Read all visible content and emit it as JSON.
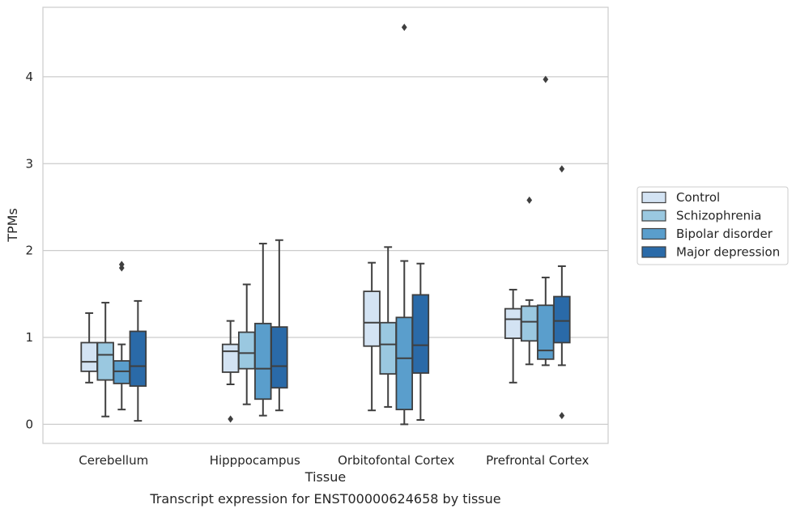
{
  "chart_data": {
    "type": "boxplot",
    "caption": "Transcript expression for ENST00000624658 by tissue",
    "xlabel": "Tissue",
    "ylabel": "TPMs",
    "ylim": [
      -0.22,
      4.8
    ],
    "yticks": [
      0,
      1,
      2,
      3,
      4
    ],
    "grid": "horizontal",
    "legend_position": "right",
    "categories": [
      "Cerebellum",
      "Hipppocampus",
      "Orbitofontal Cortex",
      "Prefrontal Cortex"
    ],
    "series": [
      {
        "name": "Control",
        "color": "#d3e3f3",
        "boxes": [
          {
            "whislo": 0.48,
            "q1": 0.61,
            "med": 0.72,
            "q3": 0.94,
            "whishi": 1.28,
            "fliers": []
          },
          {
            "whislo": 0.46,
            "q1": 0.6,
            "med": 0.84,
            "q3": 0.92,
            "whishi": 1.19,
            "fliers": [
              0.06
            ]
          },
          {
            "whislo": 0.16,
            "q1": 0.9,
            "med": 1.17,
            "q3": 1.53,
            "whishi": 1.86,
            "fliers": []
          },
          {
            "whislo": 0.48,
            "q1": 0.99,
            "med": 1.21,
            "q3": 1.33,
            "whishi": 1.55,
            "fliers": []
          }
        ]
      },
      {
        "name": "Schizophrenia",
        "color": "#9ac8e0",
        "boxes": [
          {
            "whislo": 0.09,
            "q1": 0.51,
            "med": 0.8,
            "q3": 0.94,
            "whishi": 1.4,
            "fliers": []
          },
          {
            "whislo": 0.23,
            "q1": 0.64,
            "med": 0.82,
            "q3": 1.06,
            "whishi": 1.61,
            "fliers": []
          },
          {
            "whislo": 0.2,
            "q1": 0.58,
            "med": 0.92,
            "q3": 1.17,
            "whishi": 2.04,
            "fliers": []
          },
          {
            "whislo": 0.69,
            "q1": 0.96,
            "med": 1.18,
            "q3": 1.36,
            "whishi": 1.43,
            "fliers": [
              2.58
            ]
          }
        ]
      },
      {
        "name": "Bipolar disorder",
        "color": "#5a9ecc",
        "boxes": [
          {
            "whislo": 0.17,
            "q1": 0.47,
            "med": 0.61,
            "q3": 0.73,
            "whishi": 0.92,
            "fliers": [
              1.8,
              1.84
            ]
          },
          {
            "whislo": 0.1,
            "q1": 0.29,
            "med": 0.64,
            "q3": 1.16,
            "whishi": 2.08,
            "fliers": []
          },
          {
            "whislo": 0.0,
            "q1": 0.17,
            "med": 0.76,
            "q3": 1.23,
            "whishi": 1.88,
            "fliers": [
              4.57
            ]
          },
          {
            "whislo": 0.68,
            "q1": 0.75,
            "med": 0.85,
            "q3": 1.37,
            "whishi": 1.69,
            "fliers": [
              3.97
            ]
          }
        ]
      },
      {
        "name": "Major depression",
        "color": "#2a6aa8",
        "boxes": [
          {
            "whislo": 0.04,
            "q1": 0.44,
            "med": 0.67,
            "q3": 1.07,
            "whishi": 1.42,
            "fliers": []
          },
          {
            "whislo": 0.16,
            "q1": 0.42,
            "med": 0.67,
            "q3": 1.12,
            "whishi": 2.12,
            "fliers": []
          },
          {
            "whislo": 0.05,
            "q1": 0.59,
            "med": 0.91,
            "q3": 1.49,
            "whishi": 1.85,
            "fliers": []
          },
          {
            "whislo": 0.68,
            "q1": 0.94,
            "med": 1.19,
            "q3": 1.47,
            "whishi": 1.82,
            "fliers": [
              0.1,
              2.94
            ]
          }
        ]
      }
    ]
  }
}
